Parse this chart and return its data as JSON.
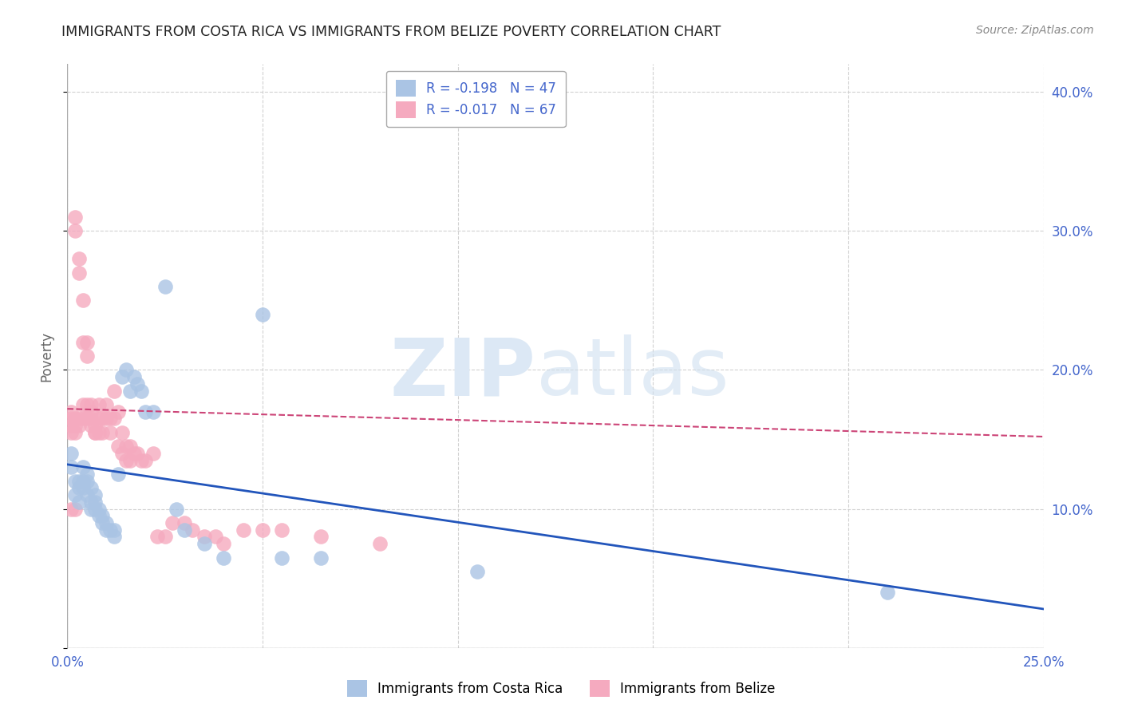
{
  "title": "IMMIGRANTS FROM COSTA RICA VS IMMIGRANTS FROM BELIZE POVERTY CORRELATION CHART",
  "source": "Source: ZipAtlas.com",
  "ylabel": "Poverty",
  "xlim": [
    0.0,
    0.25
  ],
  "ylim": [
    0.0,
    0.42
  ],
  "xticks": [
    0.0,
    0.05,
    0.1,
    0.15,
    0.2,
    0.25
  ],
  "xtick_labels": [
    "0.0%",
    "",
    "",
    "",
    "",
    "25.0%"
  ],
  "yticks": [
    0.0,
    0.1,
    0.2,
    0.3,
    0.4
  ],
  "ytick_labels_right": [
    "",
    "10.0%",
    "20.0%",
    "30.0%",
    "40.0%"
  ],
  "legend_entries": [
    {
      "label": "R = -0.198   N = 47",
      "color": "#aac4e4"
    },
    {
      "label": "R = -0.017   N = 67",
      "color": "#f5aabf"
    }
  ],
  "legend_label_bottom": [
    "Immigrants from Costa Rica",
    "Immigrants from Belize"
  ],
  "background_color": "#ffffff",
  "grid_color": "#cccccc",
  "title_color": "#222222",
  "source_color": "#888888",
  "axis_color": "#4466cc",
  "costa_rica_color": "#aac4e4",
  "belize_color": "#f5aabf",
  "costa_rica_line_color": "#2255bb",
  "belize_line_color": "#cc4477",
  "cr_line_x0": 0.0,
  "cr_line_y0": 0.132,
  "cr_line_x1": 0.25,
  "cr_line_y1": 0.028,
  "bz_line_x0": 0.0,
  "bz_line_y0": 0.172,
  "bz_line_x1": 0.25,
  "bz_line_y1": 0.152,
  "costa_rica_x": [
    0.001,
    0.001,
    0.002,
    0.002,
    0.003,
    0.003,
    0.003,
    0.004,
    0.004,
    0.004,
    0.005,
    0.005,
    0.005,
    0.006,
    0.006,
    0.006,
    0.007,
    0.007,
    0.007,
    0.008,
    0.008,
    0.009,
    0.009,
    0.01,
    0.01,
    0.011,
    0.012,
    0.012,
    0.013,
    0.014,
    0.015,
    0.016,
    0.017,
    0.018,
    0.019,
    0.02,
    0.022,
    0.025,
    0.028,
    0.03,
    0.035,
    0.04,
    0.05,
    0.055,
    0.065,
    0.105,
    0.21
  ],
  "costa_rica_y": [
    0.14,
    0.13,
    0.12,
    0.11,
    0.115,
    0.105,
    0.12,
    0.13,
    0.115,
    0.12,
    0.12,
    0.125,
    0.11,
    0.105,
    0.115,
    0.1,
    0.105,
    0.1,
    0.11,
    0.1,
    0.095,
    0.09,
    0.095,
    0.085,
    0.09,
    0.085,
    0.08,
    0.085,
    0.125,
    0.195,
    0.2,
    0.185,
    0.195,
    0.19,
    0.185,
    0.17,
    0.17,
    0.26,
    0.1,
    0.085,
    0.075,
    0.065,
    0.24,
    0.065,
    0.065,
    0.055,
    0.04
  ],
  "belize_x": [
    0.001,
    0.001,
    0.001,
    0.001,
    0.001,
    0.002,
    0.002,
    0.002,
    0.002,
    0.002,
    0.002,
    0.003,
    0.003,
    0.003,
    0.003,
    0.004,
    0.004,
    0.004,
    0.004,
    0.005,
    0.005,
    0.005,
    0.005,
    0.006,
    0.006,
    0.006,
    0.006,
    0.007,
    0.007,
    0.007,
    0.008,
    0.008,
    0.008,
    0.009,
    0.009,
    0.01,
    0.01,
    0.011,
    0.011,
    0.012,
    0.012,
    0.013,
    0.013,
    0.014,
    0.014,
    0.015,
    0.015,
    0.016,
    0.016,
    0.017,
    0.018,
    0.019,
    0.02,
    0.022,
    0.023,
    0.025,
    0.027,
    0.03,
    0.032,
    0.035,
    0.038,
    0.04,
    0.045,
    0.05,
    0.055,
    0.065,
    0.08
  ],
  "belize_y": [
    0.17,
    0.165,
    0.16,
    0.155,
    0.1,
    0.31,
    0.3,
    0.165,
    0.16,
    0.155,
    0.1,
    0.28,
    0.27,
    0.165,
    0.16,
    0.25,
    0.22,
    0.175,
    0.165,
    0.22,
    0.21,
    0.175,
    0.165,
    0.175,
    0.17,
    0.165,
    0.16,
    0.155,
    0.16,
    0.155,
    0.175,
    0.165,
    0.155,
    0.165,
    0.155,
    0.175,
    0.165,
    0.165,
    0.155,
    0.165,
    0.185,
    0.17,
    0.145,
    0.155,
    0.14,
    0.145,
    0.135,
    0.145,
    0.135,
    0.14,
    0.14,
    0.135,
    0.135,
    0.14,
    0.08,
    0.08,
    0.09,
    0.09,
    0.085,
    0.08,
    0.08,
    0.075,
    0.085,
    0.085,
    0.085,
    0.08,
    0.075
  ]
}
